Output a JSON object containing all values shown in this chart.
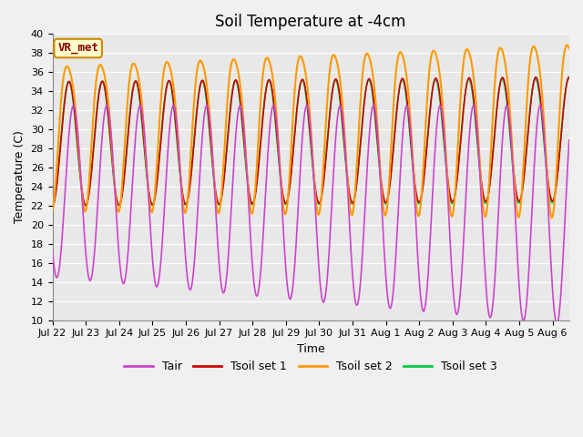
{
  "title": "Soil Temperature at -4cm",
  "xlabel": "Time",
  "ylabel": "Temperature (C)",
  "ylim": [
    10,
    40
  ],
  "xlim_start": 0,
  "xlim_end": 15.5,
  "xtick_labels": [
    "Jul 22",
    "Jul 23",
    "Jul 24",
    "Jul 25",
    "Jul 26",
    "Jul 27",
    "Jul 28",
    "Jul 29",
    "Jul 30",
    "Jul 31",
    "Aug 1",
    "Aug 2",
    "Aug 3",
    "Aug 4",
    "Aug 5",
    "Aug 6"
  ],
  "colors": {
    "Tair": "#cc44cc",
    "Tsoil1": "#cc0000",
    "Tsoil2": "#ff9900",
    "Tsoil3": "#00cc44"
  },
  "legend_labels": [
    "Tair",
    "Tsoil set 1",
    "Tsoil set 2",
    "Tsoil set 3"
  ],
  "annotation_text": "VR_met",
  "background_color": "#e8e8e8",
  "plot_bg_color": "#e8e8e8",
  "fig_bg_color": "#f0f0f0",
  "grid_color": "#ffffff",
  "title_fontsize": 12,
  "axis_fontsize": 9,
  "tick_fontsize": 8,
  "legend_fontsize": 9,
  "linewidth": 1.2
}
